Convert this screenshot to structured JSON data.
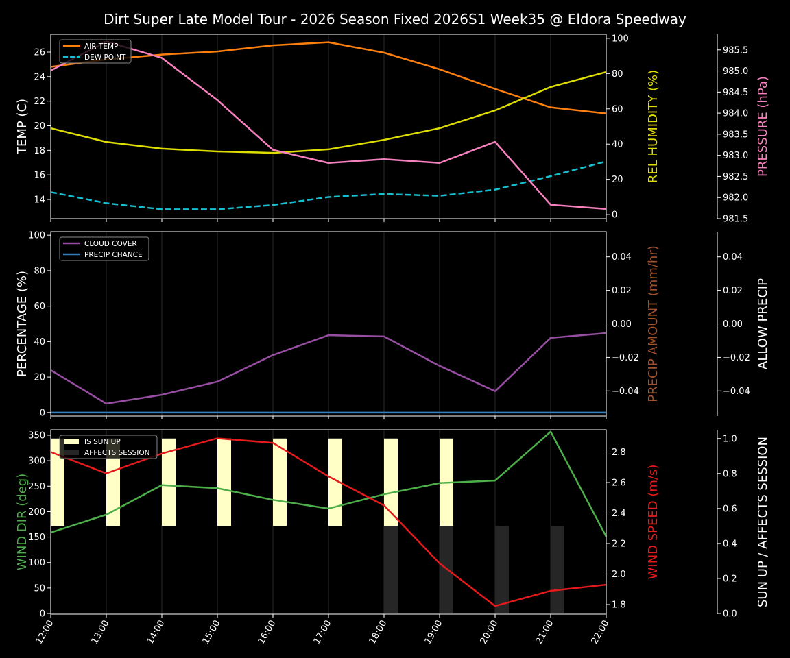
{
  "title": "Dirt Super Late Model Tour - 2026 Season Fixed 2026S1 Week35 @ Eldora Speedway",
  "colors": {
    "background": "#000000",
    "air_temp": "#ff7f0e",
    "dew_point": "#17becf",
    "humidity": "#dddd00",
    "pressure": "#f781bf",
    "cloud_cover": "#984ea3",
    "precip_chance": "#377eb8",
    "precip_amount_label": "#a0522d",
    "wind_dir": "#4daf4a",
    "wind_speed": "#e41a1c",
    "sun_up": "#ffffc6",
    "affects_session": "#262626"
  },
  "chart_data": [
    {
      "type": "line",
      "x": [
        "12:00",
        "13:00",
        "14:00",
        "15:00",
        "16:00",
        "17:00",
        "18:00",
        "19:00",
        "20:00",
        "21:00",
        "22:00"
      ],
      "grid": "vertical",
      "legend": "top-left",
      "axes": {
        "left": {
          "label": "TEMP (C)",
          "ylim": [
            12.44,
            27.45
          ],
          "ticks": [
            "14",
            "16",
            "18",
            "20",
            "22",
            "24",
            "26"
          ]
        },
        "right": {
          "label": "REL HUMIDITY (%)",
          "ylim": [
            -2.3,
            102.3
          ],
          "ticks": [
            "0",
            "20",
            "40",
            "60",
            "80",
            "100"
          ]
        },
        "right2": {
          "label": "PRESSURE (hPa)",
          "ylim": [
            981.5,
            985.87
          ],
          "ticks": [
            "981.5",
            "982.0",
            "982.5",
            "983.0",
            "983.5",
            "984.0",
            "984.5",
            "985.0",
            "985.5"
          ]
        }
      },
      "series": [
        {
          "name": "AIR TEMP",
          "axis": "left",
          "style": "solid",
          "values": [
            24.8,
            25.4,
            25.8,
            26.05,
            26.55,
            26.8,
            25.95,
            24.6,
            23.0,
            21.5,
            21.0
          ]
        },
        {
          "name": "DEW POINT",
          "axis": "left",
          "style": "dashed",
          "values": [
            14.6,
            13.7,
            13.2,
            13.2,
            13.55,
            14.2,
            14.45,
            14.3,
            14.8,
            15.9,
            17.1
          ]
        },
        {
          "axis": "right",
          "style": "solid",
          "color_key": "humidity",
          "values": [
            49,
            41.2,
            37.4,
            35.8,
            35.0,
            37.0,
            42.4,
            49.0,
            59.1,
            72.4,
            80.9
          ]
        },
        {
          "axis": "right2",
          "style": "solid",
          "color_key": "pressure",
          "values": [
            985.01,
            985.7,
            985.31,
            984.31,
            983.13,
            982.82,
            982.91,
            982.82,
            983.32,
            981.83,
            981.73
          ]
        }
      ]
    },
    {
      "type": "line",
      "x": [
        "12:00",
        "13:00",
        "14:00",
        "15:00",
        "16:00",
        "17:00",
        "18:00",
        "19:00",
        "20:00",
        "21:00",
        "22:00"
      ],
      "grid": "vertical",
      "legend": "top-left",
      "axes": {
        "left": {
          "label": "PERCENTAGE (%)",
          "ylim": [
            -2,
            102
          ],
          "ticks": [
            "0",
            "20",
            "40",
            "60",
            "80",
            "100"
          ]
        },
        "right": {
          "label": "PRECIP AMOUNT (mm/hr)",
          "ylim": [
            -0.055,
            0.055
          ],
          "ticks": [
            "−0.04",
            "−0.02",
            "0.00",
            "0.02",
            "0.04"
          ]
        },
        "right2": {
          "label": "ALLOW PRECIP",
          "ylim": [
            -0.055,
            0.055
          ],
          "ticks": [
            "−0.04",
            "−0.02",
            "0.00",
            "0.02",
            "0.04"
          ]
        }
      },
      "series": [
        {
          "name": "CLOUD COVER",
          "axis": "left",
          "values": [
            23.9,
            5.0,
            10.0,
            17.4,
            32.4,
            43.6,
            42.9,
            26.3,
            12.0,
            42.1,
            44.8
          ]
        },
        {
          "name": "PRECIP CHANCE",
          "axis": "left",
          "values": [
            0,
            0,
            0,
            0,
            0,
            0,
            0,
            0,
            0,
            0,
            0
          ]
        }
      ]
    },
    {
      "type": "line",
      "x": [
        "12:00",
        "13:00",
        "14:00",
        "15:00",
        "16:00",
        "17:00",
        "18:00",
        "19:00",
        "20:00",
        "21:00",
        "22:00"
      ],
      "grid": "vertical",
      "legend": "top-left",
      "axes": {
        "left": {
          "label": "WIND DIR (deg)",
          "ylim": [
            -1.3,
            360.7
          ],
          "ticks": [
            "0",
            "50",
            "100",
            "150",
            "200",
            "250",
            "300",
            "350"
          ]
        },
        "right": {
          "label": "WIND SPEED (m/s)",
          "ylim": [
            1.737,
            2.946
          ],
          "ticks": [
            "1.8",
            "2.0",
            "2.2",
            "2.4",
            "2.6",
            "2.8"
          ]
        },
        "right2": {
          "label": "SUN UP / AFFECTS SESSION",
          "ylim": [
            -0.004,
            1.05
          ],
          "ticks": [
            "0.0",
            "0.2",
            "0.4",
            "0.6",
            "0.8",
            "1.0"
          ]
        }
      },
      "series": [
        {
          "axis": "left",
          "color_key": "wind_dir",
          "values": [
            159,
            194,
            252,
            246,
            223,
            206,
            234,
            256,
            261,
            357,
            151
          ]
        },
        {
          "axis": "right",
          "color_key": "wind_speed",
          "values": [
            2.8,
            2.66,
            2.79,
            2.89,
            2.86,
            2.64,
            2.45,
            2.07,
            1.79,
            1.89,
            1.93
          ]
        }
      ],
      "bars": [
        {
          "name": "IS SUN UP",
          "values": [
            1,
            1,
            1,
            1,
            1,
            1,
            1,
            1,
            0,
            0,
            0
          ]
        },
        {
          "name": "AFFECTS SESSION",
          "values": [
            0,
            0,
            0,
            0,
            0,
            0,
            1,
            1,
            1,
            1,
            0
          ]
        }
      ]
    }
  ]
}
